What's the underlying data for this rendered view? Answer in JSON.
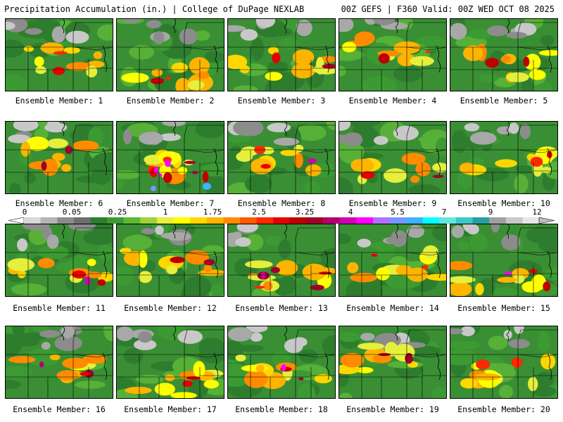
{
  "header": {
    "left": "Precipitation Accumulation (in.) | College of DuPage NEXLAB",
    "right": "00Z GEFS | F360 Valid: 00Z WED OCT 08 2025"
  },
  "colorbar": {
    "labels": [
      "0",
      "0.05",
      "0.25",
      "1",
      "1.75",
      "2.5",
      "3.25",
      "4",
      "5.5",
      "7",
      "9",
      "12"
    ],
    "colors": [
      "#d8d8d8",
      "#b4b4b4",
      "#8c8c8c",
      "#6e6e6e",
      "#2e7d2e",
      "#3c9a32",
      "#5fb832",
      "#9fd23c",
      "#e6ef3c",
      "#ffff00",
      "#ffd700",
      "#ffb400",
      "#ff8c00",
      "#ff5a00",
      "#ff2800",
      "#e60000",
      "#be0000",
      "#a00028",
      "#b4006e",
      "#d200b4",
      "#ff00ff",
      "#b46eff",
      "#7896ff",
      "#3cb4ff",
      "#00ffff",
      "#64e6dc",
      "#3cc8c8",
      "#28a0a0",
      "#a0a0a0",
      "#c8c8c8",
      "#e6e6e6"
    ]
  },
  "panels": [
    {
      "label": "Ensemble Member: 1"
    },
    {
      "label": "Ensemble Member: 2"
    },
    {
      "label": "Ensemble Member: 3"
    },
    {
      "label": "Ensemble Member: 4"
    },
    {
      "label": "Ensemble Member: 5"
    },
    {
      "label": "Ensemble Member: 6"
    },
    {
      "label": "Ensemble Member: 7"
    },
    {
      "label": "Ensemble Member: 8"
    },
    {
      "label": "Ensemble Member: 9"
    },
    {
      "label": "Ensemble Member: 10"
    },
    {
      "label": "Ensemble Member: 11"
    },
    {
      "label": "Ensemble Member: 12"
    },
    {
      "label": "Ensemble Member: 13"
    },
    {
      "label": "Ensemble Member: 14"
    },
    {
      "label": "Ensemble Member: 15"
    },
    {
      "label": "Ensemble Member: 16"
    },
    {
      "label": "Ensemble Member: 17"
    },
    {
      "label": "Ensemble Member: 18"
    },
    {
      "label": "Ensemble Member: 19"
    },
    {
      "label": "Ensemble Member: 20"
    }
  ]
}
